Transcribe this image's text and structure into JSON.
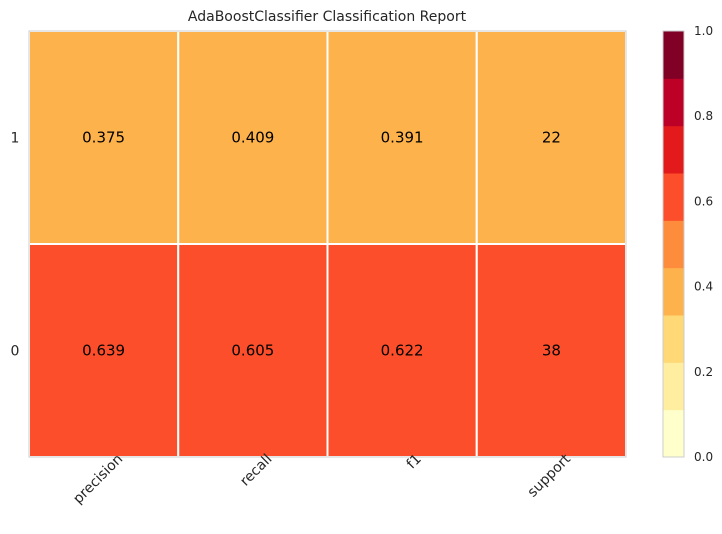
{
  "chart_data": {
    "type": "heatmap",
    "title": "AdaBoostClassifier Classification Report",
    "columns": [
      "precision",
      "recall",
      "f1",
      "support"
    ],
    "rows": [
      "1",
      "0"
    ],
    "cells": [
      {
        "values": [
          0.375,
          0.409,
          0.391,
          22
        ],
        "labels": [
          "0.375",
          "0.409",
          "0.391",
          "22"
        ]
      },
      {
        "values": [
          0.639,
          0.605,
          0.622,
          38
        ],
        "labels": [
          "0.639",
          "0.605",
          "0.622",
          "38"
        ]
      }
    ],
    "colorbar": {
      "range": [
        0.0,
        1.0
      ],
      "ticks": [
        "0.0",
        "0.2",
        "0.4",
        "0.6",
        "0.8",
        "1.0"
      ],
      "colors": [
        "#ffffcc",
        "#ffeda0",
        "#fed976",
        "#feb24c",
        "#fd8d3c",
        "#fc4e2a",
        "#e31a1c",
        "#bd0026",
        "#800026"
      ]
    },
    "cell_colors": [
      [
        "#feb24c",
        "#feb24c",
        "#feb24c",
        "#feb24c"
      ],
      [
        "#fc4e2a",
        "#fc4e2a",
        "#fc4e2a",
        "#fc4e2a"
      ]
    ]
  }
}
